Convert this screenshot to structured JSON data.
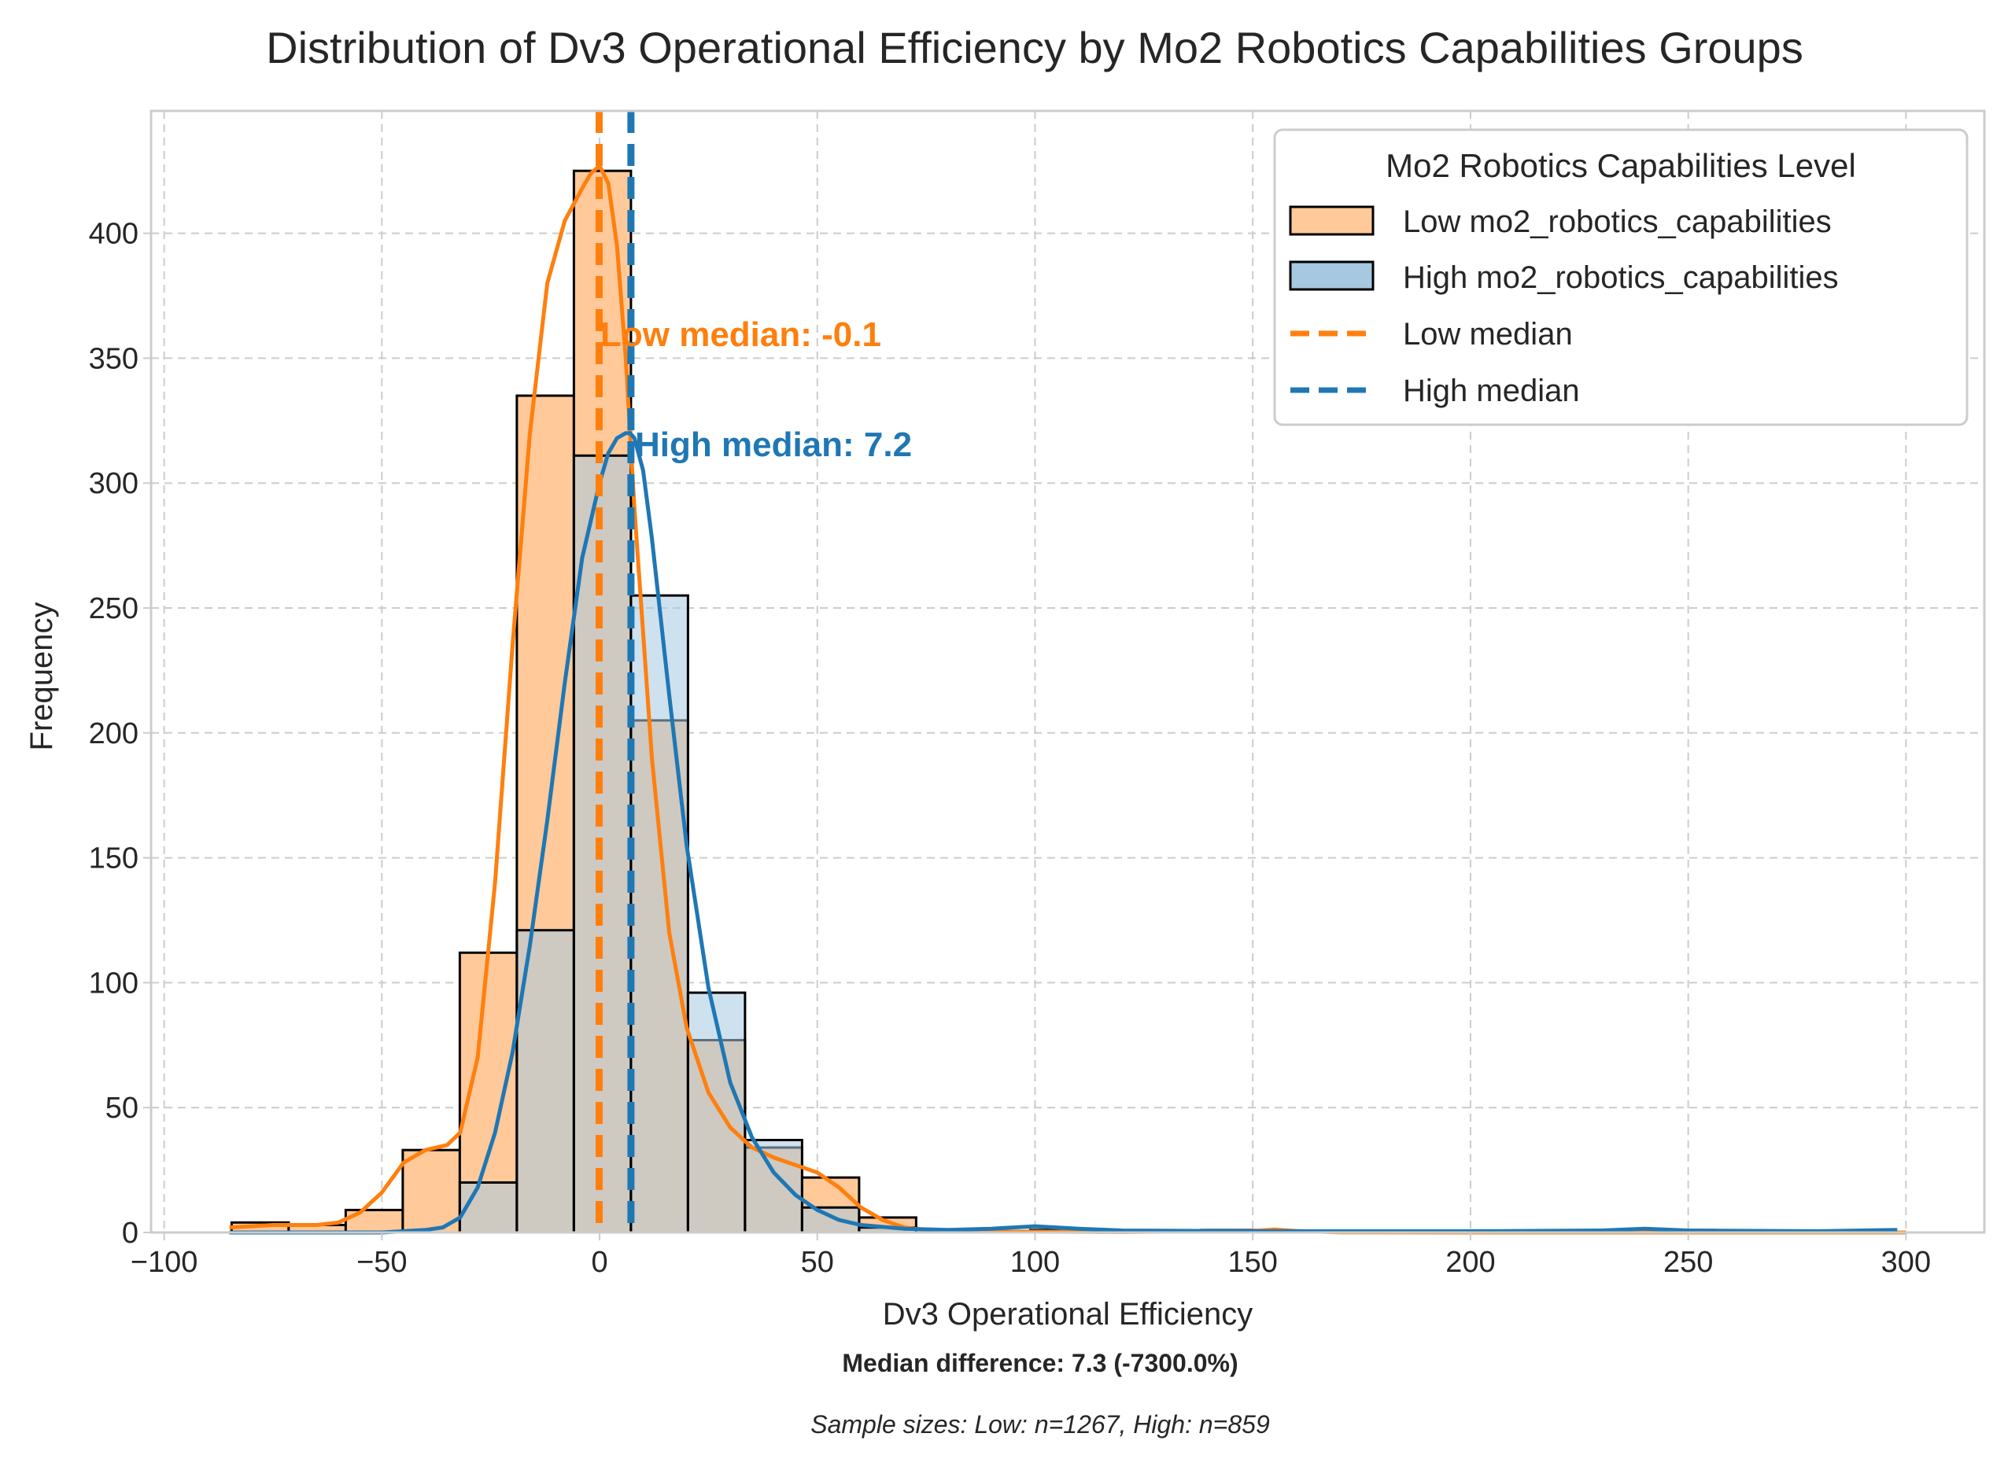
{
  "chart_data": {
    "type": "histogram",
    "title": "Distribution of Dv3 Operational Efficiency by Mo2 Robotics Capabilities Groups",
    "xlabel": "Dv3 Operational Efficiency",
    "ylabel": "Frequency",
    "xlim": [
      -103,
      318
    ],
    "ylim": [
      0,
      449
    ],
    "xticks": [
      -100,
      -50,
      0,
      50,
      100,
      150,
      200,
      250,
      300
    ],
    "xtick_labels": [
      "−100",
      "−50",
      "0",
      "50",
      "100",
      "150",
      "200",
      "250",
      "300"
    ],
    "yticks": [
      0,
      50,
      100,
      150,
      200,
      250,
      300,
      350,
      400
    ],
    "grid": true,
    "legend": {
      "title": "Mo2 Robotics Capabilities Level",
      "placement": "top-right",
      "entries": [
        "Low mo2_robotics_capabilities",
        "High mo2_robotics_capabilities",
        "Low median",
        "High median"
      ]
    },
    "bins": {
      "start": -84.5,
      "width": 13.1,
      "count": 29
    },
    "series": [
      {
        "name": "Low mo2_robotics_capabilities",
        "color": "#ff7f0e",
        "fill": "#ffc999",
        "counts": [
          4,
          3,
          9,
          33,
          112,
          335,
          425,
          205,
          77,
          34,
          22,
          6,
          0,
          0,
          0,
          0,
          0,
          1,
          0,
          0,
          0,
          0,
          0,
          0,
          0,
          0,
          0,
          0,
          0
        ],
        "kde_x": [
          -85,
          -80,
          -75,
          -70,
          -65,
          -60,
          -55,
          -50,
          -45,
          -40,
          -35,
          -32,
          -28,
          -24,
          -20,
          -16,
          -12,
          -8,
          -4,
          -2,
          0,
          2,
          4,
          6,
          8,
          12,
          16,
          20,
          25,
          30,
          35,
          40,
          45,
          50,
          55,
          60,
          65,
          70,
          75,
          80,
          90,
          100,
          120,
          150,
          155,
          160,
          170,
          200,
          250,
          300
        ],
        "kde_y": [
          2,
          2.5,
          3,
          3,
          3,
          4,
          8,
          16,
          28,
          33,
          35,
          40,
          70,
          140,
          235,
          320,
          380,
          405,
          418,
          424,
          427,
          420,
          395,
          350,
          290,
          190,
          120,
          82,
          56,
          42,
          34,
          30,
          27,
          24,
          18,
          10,
          5,
          2,
          1,
          0.5,
          0.3,
          0.3,
          0.2,
          0.6,
          1.2,
          0.6,
          0.1,
          0,
          0,
          0
        ]
      },
      {
        "name": "High mo2_robotics_capabilities",
        "color": "#1f77b4",
        "fill": "#a6c8e1",
        "counts": [
          0,
          0,
          0,
          0,
          20,
          121,
          311,
          255,
          96,
          37,
          10,
          2,
          0,
          0,
          1,
          0,
          0,
          0,
          0,
          0,
          0,
          0,
          0,
          0,
          0,
          1,
          0,
          0,
          0
        ],
        "kde_x": [
          -85,
          -50,
          -40,
          -36,
          -32,
          -28,
          -24,
          -20,
          -16,
          -12,
          -8,
          -4,
          0,
          2,
          4,
          6,
          7,
          8,
          10,
          12,
          16,
          20,
          25,
          30,
          35,
          40,
          45,
          50,
          55,
          60,
          70,
          80,
          90,
          100,
          110,
          120,
          150,
          200,
          230,
          240,
          250,
          280,
          298
        ],
        "kde_y": [
          0,
          0,
          1,
          2,
          6,
          18,
          40,
          72,
          115,
          165,
          220,
          270,
          300,
          312,
          318,
          320,
          320,
          318,
          305,
          278,
          215,
          155,
          98,
          60,
          38,
          24,
          15,
          9,
          5,
          3,
          1.5,
          1,
          1.5,
          2.5,
          1.5,
          0.8,
          0.5,
          0.5,
          0.8,
          1.5,
          0.8,
          0.5,
          1
        ]
      }
    ],
    "medians": [
      {
        "name": "Low median",
        "value": -0.1,
        "color": "#ff7f0e",
        "label": "Low median: -0.1"
      },
      {
        "name": "High median",
        "value": 7.2,
        "color": "#1f77b4",
        "label": "High median: 7.2"
      }
    ],
    "annotations": {
      "median_difference": "Median difference: 7.3 (-7300.0%)",
      "sample_sizes": "Sample sizes: Low: n=1267, High: n=859"
    }
  }
}
